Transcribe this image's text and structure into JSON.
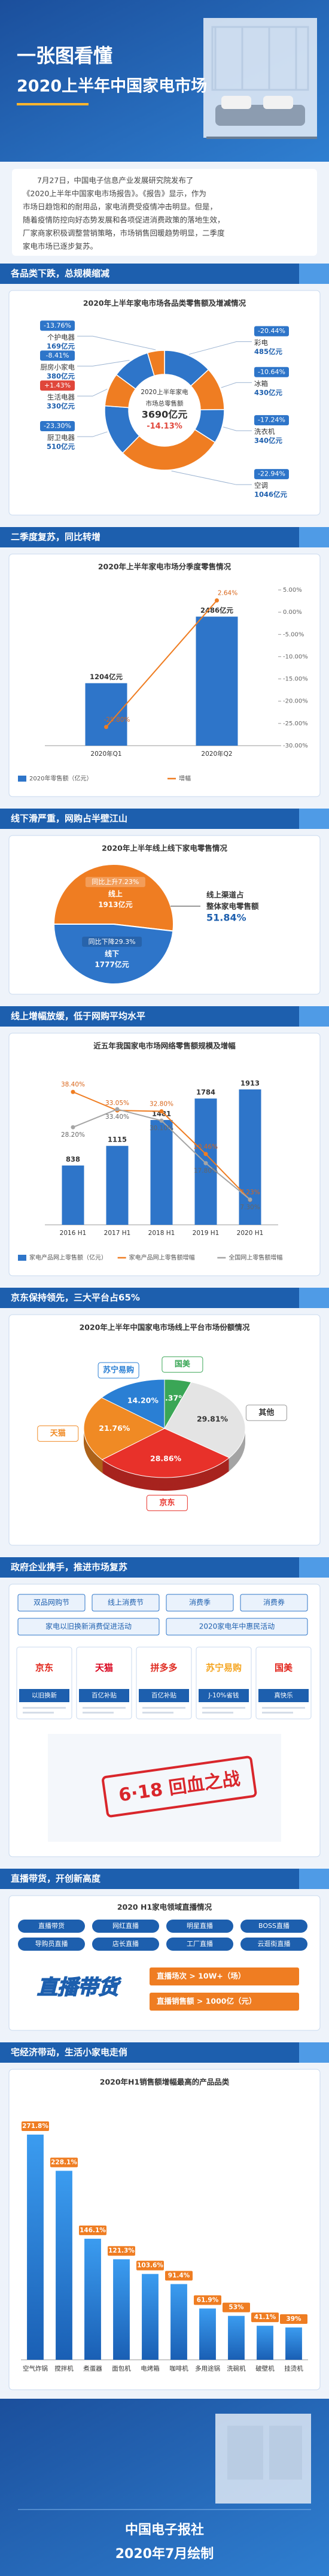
{
  "header": {
    "title_lines": [
      "一张图看懂",
      "2020上半年中国家电市场"
    ]
  },
  "intro": [
    "7月27日，中国电子信息产业发展研究院发布了",
    "《2020上半年中国家电市场报告》。《报告》显示，作为",
    "市场日趋饱和的耐用品，家电消费受疫情冲击明显。但是，",
    "随着疫情防控向好态势发展和各项促进消费政策的落地生效，",
    "厂家商家积极调整营销策略，市场销售回暖趋势明显，二季度",
    "家电市场已逐步复苏。"
  ],
  "sections": [
    "各品类下跌，总规模缩减",
    "二季度复苏，同比转增",
    "线下滑严重，网购占半壁江山",
    "线上增幅放缓，低于网购平均水平",
    "京东保持领先，三大平台占65%",
    "政府企业携手，推进市场复苏",
    "直播带货，开创新高度",
    "宅经济带动，生活小家电走俏"
  ],
  "chart_data": [
    {
      "type": "donut",
      "title": "2020年上半年家电市场各品类零售额及增减情况",
      "categories": [
        "彩电",
        "冰箱",
        "洗衣机",
        "空调",
        "厨卫电器",
        "生活电器",
        "厨房小家电",
        "个护电器"
      ],
      "values": [
        485,
        430,
        340,
        1046,
        510,
        330,
        380,
        169
      ],
      "value_labels": [
        "485亿元",
        "430亿元",
        "340亿元",
        "1046亿元",
        "510亿元",
        "330亿元",
        "380亿元",
        "169亿元"
      ],
      "growth": [
        -20.44,
        -10.64,
        -17.24,
        -22.94,
        -23.3,
        1.43,
        -8.41,
        -13.76
      ],
      "growth_labels": [
        "-20.44%",
        "-10.64%",
        "-17.24%",
        "-22.94%",
        "-23.30%",
        "+1.43%",
        "-8.41%",
        "-13.76%"
      ],
      "colors": [
        "#2e75c9",
        "#ef7d22"
      ],
      "center": [
        "2020上半年家电",
        "市场总零售额",
        "3690亿元",
        "-14.13%"
      ]
    },
    {
      "type": "bar_line",
      "title": "2020年上半年家电市场分季度零售情况",
      "categories": [
        "2020年Q1",
        "2020年Q2"
      ],
      "series": [
        {
          "name": "2020年零售额（亿元）",
          "kind": "bar",
          "color": "#2e75c9",
          "values": [
            1204,
            2486
          ],
          "value_labels": [
            "1204亿元",
            "2486亿元"
          ]
        },
        {
          "name": "增幅",
          "kind": "line",
          "axis": "y2",
          "color": "#ef7d22",
          "values": [
            -25.8,
            2.64
          ],
          "value_labels": [
            "-25.80%",
            "2.64%"
          ]
        }
      ],
      "ylim": [
        0,
        3000
      ],
      "y2lim": [
        -30,
        5
      ],
      "y2ticks": [
        {
          "value": 5,
          "label": "5.00%"
        },
        {
          "value": 0,
          "label": "0.00%"
        },
        {
          "value": -5,
          "label": "-5.00%"
        },
        {
          "value": -10,
          "label": "-10.00%"
        },
        {
          "value": -15,
          "label": "-15.00%"
        },
        {
          "value": -20,
          "label": "-20.00%"
        },
        {
          "value": -25,
          "label": "-25.00%"
        },
        {
          "value": -30,
          "label": "-30.00%"
        }
      ]
    },
    {
      "type": "pie",
      "title": "2020年上半年线上线下家电零售情况",
      "categories": [
        "线上",
        "线下"
      ],
      "values": [
        1913,
        1777
      ],
      "value_labels": [
        "1913亿元",
        "1777亿元"
      ],
      "growth": [
        7.23,
        -29.3
      ],
      "growth_labels": [
        "同比上升7.23%",
        "同比下降29.3%"
      ],
      "colors": [
        "#ef7d22",
        "#2e75c9"
      ],
      "annotation": [
        "线上渠道占",
        "整体家电零售额",
        "51.84%"
      ]
    },
    {
      "type": "bar_line",
      "title": "近五年我国家电市场网络零售额规模及增幅",
      "categories": [
        "2016 H1",
        "2017 H1",
        "2018 H1",
        "2019 H1",
        "2020 H1"
      ],
      "series": [
        {
          "name": "家电产品网上零售额（亿元）",
          "kind": "bar",
          "color": "#2e75c9",
          "values": [
            838,
            1115,
            1481,
            1784,
            1913
          ]
        },
        {
          "name": "家电产品网上零售额增幅",
          "kind": "line",
          "axis": "y2",
          "color": "#ef7d22",
          "values": [
            38.4,
            33.05,
            32.8,
            20.46,
            7.23
          ],
          "value_labels": [
            "38.40%",
            "33.05%",
            "32.80%",
            "20.46%",
            "7.23%"
          ]
        },
        {
          "name": "全国网上零售额增幅",
          "kind": "line",
          "axis": "y2",
          "color": "#a5a5a5",
          "values": [
            28.2,
            33.4,
            30.1,
            17.8,
            7.3
          ],
          "value_labels": [
            "28.20%",
            "33.40%",
            "30.10%",
            "17.80%",
            "7.30%"
          ]
        }
      ],
      "ylim": [
        0,
        2200
      ],
      "y2lim": [
        0,
        45
      ]
    },
    {
      "type": "pie3d",
      "title": "2020年上半年中国家电市场线上平台市场份额情况",
      "categories": [
        "国美",
        "其他",
        "京东",
        "天猫",
        "苏宁易购"
      ],
      "values": [
        5.37,
        29.81,
        28.86,
        21.76,
        14.2
      ],
      "value_labels": [
        "5.37%",
        "29.81%",
        "28.86%",
        "21.76%",
        "14.20%"
      ],
      "colors": [
        "#3aa656",
        "#e4e4e4",
        "#e8312a",
        "#f08a24",
        "#2a7fd4"
      ]
    },
    {
      "type": "bar",
      "title": "2020年H1销售额增幅最高的产品品类",
      "categories": [
        "空气炸锅",
        "搅拌机",
        "煮蛋器",
        "面包机",
        "电烤箱",
        "咖啡机",
        "多用途锅",
        "洗碗机",
        "破壁机",
        "挂烫机"
      ],
      "values": [
        271.8,
        228.1,
        146.1,
        121.3,
        103.6,
        91.4,
        61.9,
        53,
        41.1,
        39
      ],
      "value_labels": [
        "271.8%",
        "228.1%",
        "146.1%",
        "121.3%",
        "103.6%",
        "91.4%",
        "61.9%",
        "53%",
        "41.1%",
        "39%"
      ],
      "color": "#2e86de",
      "label_color": "#ef7d22",
      "ylim": [
        0,
        300
      ]
    }
  ],
  "policy": {
    "row1": [
      "双品网购节",
      "线上消费节",
      "消费季",
      "消费券"
    ],
    "row2": [
      "家电以旧换新消费促进活动",
      "2020家电年中惠民活动"
    ],
    "platforms": [
      {
        "name": "京东",
        "note": "以旧换新"
      },
      {
        "name": "天猫",
        "note": "百亿补贴"
      },
      {
        "name": "拼多多",
        "note": "百亿补贴"
      },
      {
        "name": "苏宁易购",
        "note": "J-10%省钱"
      },
      {
        "name": "国美",
        "note": "真快乐"
      }
    ],
    "stamp": "6·18 回血之战"
  },
  "live": {
    "title": "2020 H1家电领域直播情况",
    "tags": [
      "直播带货",
      "网红直播",
      "明星直播",
      "BOSS直播",
      "导购员直播",
      "店长直播",
      "工厂直播",
      "云逛街直播"
    ],
    "logo": "直播带货",
    "stats": [
      "直播场次 > 10W+（场）",
      "直播销售额 > 1000亿（元）"
    ]
  },
  "footer": [
    "中国电子报社",
    "2020年7月绘制"
  ]
}
